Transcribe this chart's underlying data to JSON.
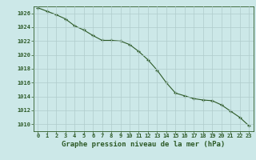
{
  "x": [
    0,
    1,
    2,
    3,
    4,
    5,
    6,
    7,
    8,
    9,
    10,
    11,
    12,
    13,
    14,
    15,
    16,
    17,
    18,
    19,
    20,
    21,
    22,
    23
  ],
  "y": [
    1026.8,
    1026.3,
    1025.8,
    1025.2,
    1024.2,
    1023.6,
    1022.8,
    1022.1,
    1022.1,
    1022.0,
    1021.5,
    1020.5,
    1019.3,
    1017.8,
    1016.0,
    1014.5,
    1014.1,
    1013.7,
    1013.5,
    1013.4,
    1012.8,
    1011.9,
    1011.0,
    1009.8
  ],
  "ylim": [
    1009,
    1027
  ],
  "yticks": [
    1010,
    1012,
    1014,
    1016,
    1018,
    1020,
    1022,
    1024,
    1026
  ],
  "xticks": [
    0,
    1,
    2,
    3,
    4,
    5,
    6,
    7,
    8,
    9,
    10,
    11,
    12,
    13,
    14,
    15,
    16,
    17,
    18,
    19,
    20,
    21,
    22,
    23
  ],
  "line_color": "#2d5a27",
  "marker_color": "#2d5a27",
  "bg_color": "#cce8e8",
  "grid_color": "#b0cccc",
  "xlabel": "Graphe pression niveau de la mer (hPa)",
  "xlabel_color": "#2d5a27",
  "tick_color": "#2d5a27",
  "xlabel_fontsize": 6.5,
  "tick_fontsize": 5.0
}
